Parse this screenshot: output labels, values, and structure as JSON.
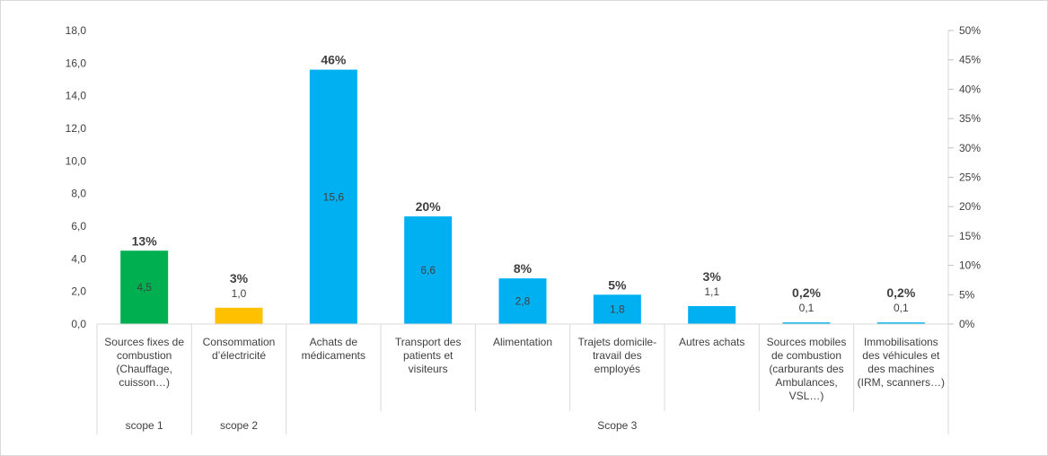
{
  "chart_data": {
    "type": "bar",
    "title": "",
    "xlabel": "",
    "ylabel": "",
    "ylim": [
      0,
      18
    ],
    "y_ticks": [
      "0,0",
      "2,0",
      "4,0",
      "6,0",
      "8,0",
      "10,0",
      "12,0",
      "14,0",
      "16,0",
      "18,0"
    ],
    "y2lim": [
      0,
      50
    ],
    "y2_ticks": [
      "0%",
      "5%",
      "10%",
      "15%",
      "20%",
      "25%",
      "30%",
      "35%",
      "40%",
      "45%",
      "50%"
    ],
    "grid": false,
    "legend": "none",
    "categories": [
      [
        "Sources fixes de",
        "combustion",
        "(Chauffage,",
        "cuisson…)"
      ],
      [
        "Consommation",
        "d’électricité"
      ],
      [
        "Achats de",
        "médicaments"
      ],
      [
        "Transport des",
        "patients et",
        "visiteurs"
      ],
      [
        "Alimentation"
      ],
      [
        "Trajets domicile-",
        "travail des",
        "employés"
      ],
      [
        "Autres achats"
      ],
      [
        "Sources mobiles",
        "de combustion",
        "(carburants des",
        "Ambulances,",
        "VSL…)"
      ],
      [
        "Immobilisations",
        "des véhicules et",
        "des machines",
        "(IRM, scanners…)"
      ]
    ],
    "values": [
      4.5,
      1.0,
      15.6,
      6.6,
      2.8,
      1.8,
      1.1,
      0.1,
      0.1
    ],
    "value_labels": [
      "4,5",
      "1,0",
      "15,6",
      "6,6",
      "2,8",
      "1,8",
      "1,1",
      "0,1",
      "0,1"
    ],
    "percent_labels": [
      "13%",
      "3%",
      "46%",
      "20%",
      "8%",
      "5%",
      "3%",
      "0,2%",
      "0,2%"
    ],
    "bar_colors": [
      "#00b050",
      "#ffc000",
      "#00b0f0",
      "#00b0f0",
      "#00b0f0",
      "#00b0f0",
      "#00b0f0",
      "#00b0f0",
      "#00b0f0"
    ],
    "groups": [
      {
        "label": "scope 1",
        "span": 1
      },
      {
        "label": "scope 2",
        "span": 1
      },
      {
        "label": "Scope 3",
        "span": 7
      }
    ]
  }
}
